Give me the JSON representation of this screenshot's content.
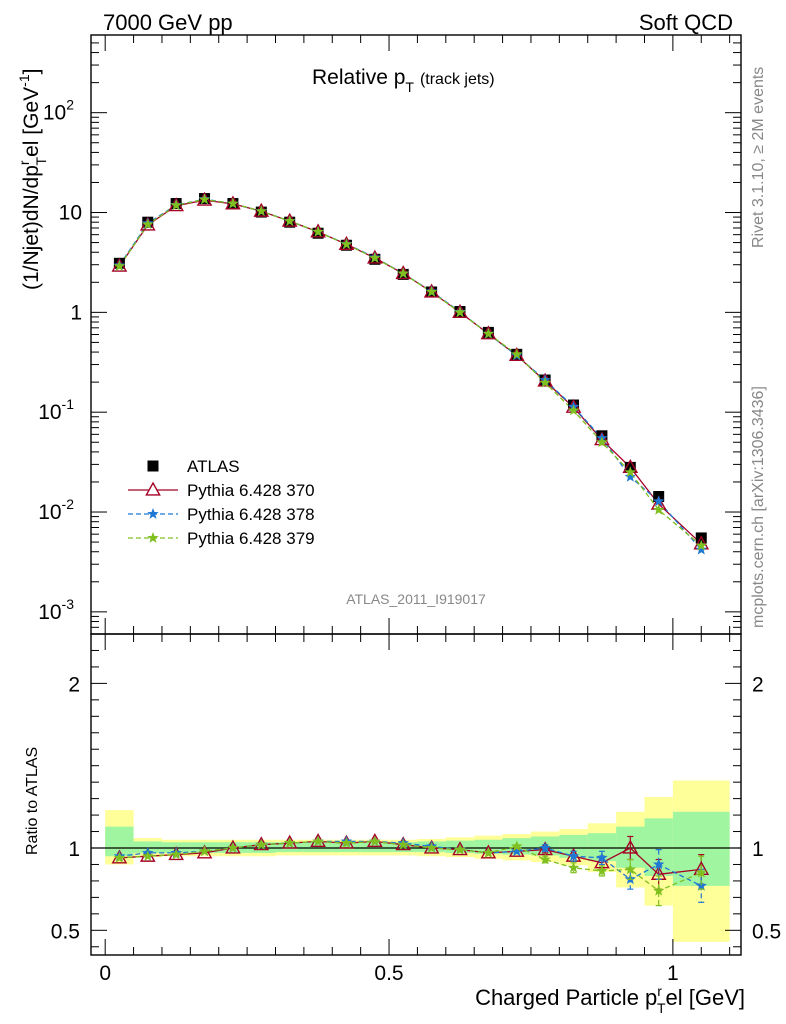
{
  "header": {
    "left": "7000 GeV pp",
    "right": "Soft QCD"
  },
  "side_labels": {
    "rivet": "Rivet 3.1.10, ≥ 2M events",
    "mcplots": "mcplots.cern.ch [arXiv:1306.3436]"
  },
  "colors": {
    "atlas": "#000000",
    "p370": "#a50026",
    "p378": "#1f78d4",
    "p379": "#7fbf1f",
    "band_green": "#a0f5a0",
    "band_yellow": "#ffff99"
  },
  "chart_data": [
    {
      "type": "line",
      "panel": "main",
      "title": "Relative p",
      "title_sub": "T",
      "title_extra": "(track jets)",
      "ylabel": "(1/Njet)dN/dp",
      "ylabel_sub": "T",
      "ylabel_sup": "r",
      "ylabel_mid": "el [GeV",
      "ylabel_sup2": "-1",
      "ylabel_end": "]",
      "watermark": "ATLAS_2011_I919017",
      "yscale": "log",
      "xlim": [
        -0.025,
        1.12
      ],
      "ylim": [
        0.0006,
        600
      ],
      "y_tick_labels": [
        {
          "v": 0.001,
          "base": "10",
          "exp": "-3"
        },
        {
          "v": 0.01,
          "base": "10",
          "exp": "-2"
        },
        {
          "v": 0.1,
          "base": "10",
          "exp": "-1"
        },
        {
          "v": 1,
          "base": "1",
          "exp": ""
        },
        {
          "v": 10,
          "base": "10",
          "exp": ""
        },
        {
          "v": 100,
          "base": "10",
          "exp": "2"
        }
      ],
      "legend": {
        "placement": "center-left",
        "entries": [
          {
            "name": "ATLAS",
            "style": "square"
          },
          {
            "name": "Pythia 6.428 370",
            "style": "triangle"
          },
          {
            "name": "Pythia 6.428 378",
            "style": "star-dash"
          },
          {
            "name": "Pythia 6.428 379",
            "style": "star-dash"
          }
        ]
      },
      "x": [
        0.025,
        0.075,
        0.125,
        0.175,
        0.225,
        0.275,
        0.325,
        0.375,
        0.425,
        0.475,
        0.525,
        0.575,
        0.625,
        0.675,
        0.725,
        0.775,
        0.825,
        0.875,
        0.925,
        0.975,
        1.05
      ],
      "series": [
        {
          "name": "ATLAS",
          "values": [
            3.1,
            8.0,
            12.3,
            13.8,
            12.3,
            10.1,
            8.0,
            6.2,
            4.7,
            3.4,
            2.4,
            1.6,
            1.02,
            0.63,
            0.38,
            0.21,
            0.118,
            0.058,
            0.028,
            0.0143,
            0.0055
          ]
        },
        {
          "name": "Pythia 6.428 370",
          "values": [
            2.9,
            7.5,
            11.7,
            13.3,
            12.2,
            10.3,
            8.2,
            6.4,
            4.8,
            3.5,
            2.45,
            1.6,
            1.0,
            0.61,
            0.37,
            0.205,
            0.112,
            0.053,
            0.028,
            0.012,
            0.0048
          ]
        },
        {
          "name": "Pythia 6.428 378",
          "values": [
            2.95,
            7.8,
            11.9,
            13.6,
            12.3,
            10.3,
            8.2,
            6.4,
            4.85,
            3.55,
            2.45,
            1.62,
            1.01,
            0.61,
            0.37,
            0.21,
            0.113,
            0.055,
            0.0225,
            0.0128,
            0.0042
          ]
        },
        {
          "name": "Pythia 6.428 379",
          "values": [
            2.9,
            7.6,
            11.8,
            13.5,
            12.3,
            10.3,
            8.2,
            6.4,
            4.8,
            3.5,
            2.45,
            1.6,
            1.0,
            0.61,
            0.38,
            0.197,
            0.104,
            0.05,
            0.025,
            0.0105,
            0.0046
          ]
        }
      ]
    },
    {
      "type": "line",
      "panel": "ratio",
      "ylabel": "Ratio to ATLAS",
      "xlabel": "Charged Particle p",
      "xlabel_sub": "T",
      "xlabel_sup": "r",
      "xlabel_end": "el [GeV]",
      "xlim": [
        -0.025,
        1.12
      ],
      "ylim": [
        0.35,
        2.3
      ],
      "x_ticks": [
        0,
        0.5,
        1
      ],
      "x_tick_labels": [
        "0",
        "0.5",
        "1"
      ],
      "y_ticks": [
        0.5,
        1,
        2
      ],
      "y_tick_labels": [
        "0.5",
        "1",
        "2"
      ],
      "bands": {
        "edges": [
          0,
          0.05,
          0.1,
          0.15,
          0.2,
          0.25,
          0.3,
          0.35,
          0.4,
          0.45,
          0.5,
          0.55,
          0.6,
          0.65,
          0.7,
          0.75,
          0.8,
          0.85,
          0.9,
          0.95,
          1.0,
          1.1
        ],
        "green": [
          [
            0.95,
            1.13
          ],
          [
            0.97,
            1.04
          ],
          [
            0.97,
            1.035
          ],
          [
            0.97,
            1.035
          ],
          [
            0.97,
            1.035
          ],
          [
            0.97,
            1.035
          ],
          [
            0.975,
            1.035
          ],
          [
            0.975,
            1.035
          ],
          [
            0.975,
            1.035
          ],
          [
            0.975,
            1.035
          ],
          [
            0.975,
            1.035
          ],
          [
            0.975,
            1.04
          ],
          [
            0.97,
            1.045
          ],
          [
            0.965,
            1.05
          ],
          [
            0.96,
            1.06
          ],
          [
            0.955,
            1.07
          ],
          [
            0.94,
            1.08
          ],
          [
            0.92,
            1.09
          ],
          [
            0.88,
            1.13
          ],
          [
            0.83,
            1.18
          ],
          [
            0.77,
            1.22
          ]
        ],
        "yellow": [
          [
            0.9,
            1.23
          ],
          [
            0.945,
            1.06
          ],
          [
            0.95,
            1.05
          ],
          [
            0.95,
            1.05
          ],
          [
            0.95,
            1.05
          ],
          [
            0.95,
            1.05
          ],
          [
            0.955,
            1.05
          ],
          [
            0.955,
            1.05
          ],
          [
            0.955,
            1.05
          ],
          [
            0.955,
            1.05
          ],
          [
            0.955,
            1.05
          ],
          [
            0.95,
            1.055
          ],
          [
            0.945,
            1.065
          ],
          [
            0.935,
            1.075
          ],
          [
            0.925,
            1.085
          ],
          [
            0.915,
            1.1
          ],
          [
            0.895,
            1.115
          ],
          [
            0.855,
            1.15
          ],
          [
            0.76,
            1.22
          ],
          [
            0.65,
            1.31
          ],
          [
            0.43,
            1.41
          ]
        ]
      },
      "x": [
        0.025,
        0.075,
        0.125,
        0.175,
        0.225,
        0.275,
        0.325,
        0.375,
        0.425,
        0.475,
        0.525,
        0.575,
        0.625,
        0.675,
        0.725,
        0.775,
        0.825,
        0.875,
        0.925,
        0.975,
        1.05
      ],
      "series": [
        {
          "name": "Pythia 6.428 370",
          "values": [
            0.94,
            0.95,
            0.96,
            0.97,
            1.0,
            1.02,
            1.03,
            1.04,
            1.03,
            1.04,
            1.02,
            1.0,
            0.99,
            0.97,
            0.98,
            0.99,
            0.95,
            0.91,
            1.0,
            0.84,
            0.87
          ],
          "errors": [
            0,
            0,
            0,
            0,
            0,
            0,
            0,
            0,
            0,
            0,
            0,
            0,
            0,
            0,
            0,
            0.02,
            0.03,
            0.04,
            0.07,
            0.09,
            0.09
          ]
        },
        {
          "name": "Pythia 6.428 378",
          "values": [
            0.95,
            0.97,
            0.97,
            0.98,
            1.0,
            1.02,
            1.03,
            1.04,
            1.04,
            1.04,
            1.03,
            1.01,
            0.99,
            0.97,
            0.98,
            1.0,
            0.95,
            0.94,
            0.81,
            0.9,
            0.77
          ],
          "errors": [
            0,
            0,
            0,
            0,
            0,
            0,
            0,
            0,
            0,
            0,
            0,
            0,
            0,
            0,
            0,
            0.02,
            0.03,
            0.04,
            0.06,
            0.09,
            0.1
          ]
        },
        {
          "name": "Pythia 6.428 379",
          "values": [
            0.94,
            0.95,
            0.96,
            0.98,
            1.0,
            1.02,
            1.03,
            1.04,
            1.03,
            1.04,
            1.02,
            1.0,
            0.99,
            0.97,
            1.01,
            0.93,
            0.88,
            0.86,
            0.87,
            0.74,
            0.85
          ],
          "errors": [
            0,
            0,
            0,
            0,
            0,
            0,
            0,
            0,
            0,
            0,
            0,
            0,
            0,
            0,
            0,
            0.02,
            0.03,
            0.03,
            0.06,
            0.09,
            0.1
          ]
        }
      ]
    }
  ]
}
